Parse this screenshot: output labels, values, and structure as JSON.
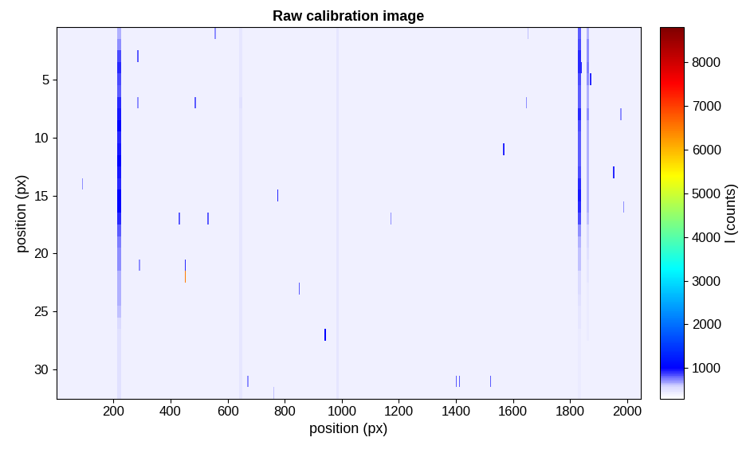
{
  "chart_data": {
    "type": "heatmap",
    "title": "Raw calibration image",
    "x_label": "position (px)",
    "y_label": "position (px)",
    "xlim": [
      0.5,
      2048.5
    ],
    "ylim": [
      32.5,
      0.5
    ],
    "xticks": [
      200,
      400,
      600,
      800,
      1000,
      1200,
      1400,
      1600,
      1800,
      2000
    ],
    "yticks": [
      5,
      10,
      15,
      20,
      25,
      30
    ],
    "grid": false,
    "cells": {
      "rows": 32,
      "columns": 2048,
      "background": 400,
      "lines": [
        {
          "col_range": [
            214,
            226
          ],
          "values": [
            650,
            700,
            850,
            900,
            850,
            800,
            900,
            950,
            1000,
            900,
            950,
            1000,
            950,
            900,
            1000,
            1050,
            900,
            800,
            750,
            700,
            700,
            650,
            650,
            650,
            600,
            550,
            500,
            500,
            500,
            500,
            500,
            500
          ]
        },
        {
          "col_range": [
            641,
            649
          ],
          "values": [
            480,
            490,
            490,
            480,
            480,
            490,
            500,
            490,
            480,
            480,
            490,
            490,
            480,
            480,
            490,
            490,
            480,
            480,
            470,
            470,
            480,
            480,
            470,
            470,
            470,
            470,
            470,
            470,
            470,
            470,
            470,
            470
          ]
        },
        {
          "col_range": [
            981,
            989
          ],
          "values": [
            480,
            480,
            490,
            480,
            480,
            480,
            490,
            480,
            480,
            480,
            480,
            490,
            480,
            480,
            480,
            480,
            470,
            470,
            470,
            470,
            470,
            470,
            470,
            470,
            470,
            470,
            470,
            470,
            470,
            470,
            470,
            470
          ]
        },
        {
          "col_range": [
            1825,
            1835
          ],
          "values": [
            800,
            850,
            900,
            900,
            850,
            800,
            800,
            900,
            850,
            800,
            800,
            800,
            850,
            900,
            950,
            900,
            850,
            700,
            650,
            600,
            600,
            550,
            550,
            500,
            480,
            470,
            460,
            460,
            450,
            450,
            450,
            450
          ]
        },
        {
          "col_range": [
            1856,
            1864
          ],
          "values": [
            650,
            700,
            700,
            750,
            700,
            650,
            650,
            700,
            650,
            650,
            650,
            650,
            650,
            650,
            650,
            650,
            600,
            550,
            550,
            500,
            480,
            470,
            460,
            450,
            450,
            440,
            440,
            430,
            430,
            430,
            430,
            430
          ]
        }
      ],
      "spikes": [
        [
          1,
          554,
          557,
          700
        ],
        [
          1,
          1649,
          1652,
          600
        ],
        [
          3,
          284,
          287,
          800
        ],
        [
          4,
          1837,
          1840,
          900
        ],
        [
          5,
          1869,
          1872,
          900
        ],
        [
          7,
          284,
          287,
          700
        ],
        [
          7,
          484,
          487,
          800
        ],
        [
          7,
          1644,
          1647,
          700
        ],
        [
          8,
          1974,
          1977,
          700
        ],
        [
          11,
          1564,
          1567,
          900
        ],
        [
          13,
          1949,
          1952,
          900
        ],
        [
          14,
          89,
          92,
          700
        ],
        [
          15,
          774,
          777,
          900
        ],
        [
          16,
          1984,
          1987,
          700
        ],
        [
          17,
          429,
          432,
          800
        ],
        [
          17,
          529,
          532,
          800
        ],
        [
          17,
          1169,
          1172,
          700
        ],
        [
          21,
          289,
          292,
          700
        ],
        [
          21,
          449,
          452,
          900
        ],
        [
          22,
          449,
          452,
          6500
        ],
        [
          23,
          849,
          852,
          800
        ],
        [
          27,
          939,
          942,
          1000
        ],
        [
          31,
          669,
          672,
          700
        ],
        [
          31,
          1399,
          1402,
          800
        ],
        [
          31,
          1409,
          1412,
          800
        ],
        [
          31,
          1519,
          1522,
          800
        ],
        [
          32,
          759,
          762,
          600
        ]
      ]
    },
    "colorbar": {
      "label": "I (counts)",
      "range": [
        300,
        8800
      ],
      "ticks": [
        1000,
        2000,
        3000,
        4000,
        5000,
        6000,
        7000,
        8000
      ]
    }
  }
}
